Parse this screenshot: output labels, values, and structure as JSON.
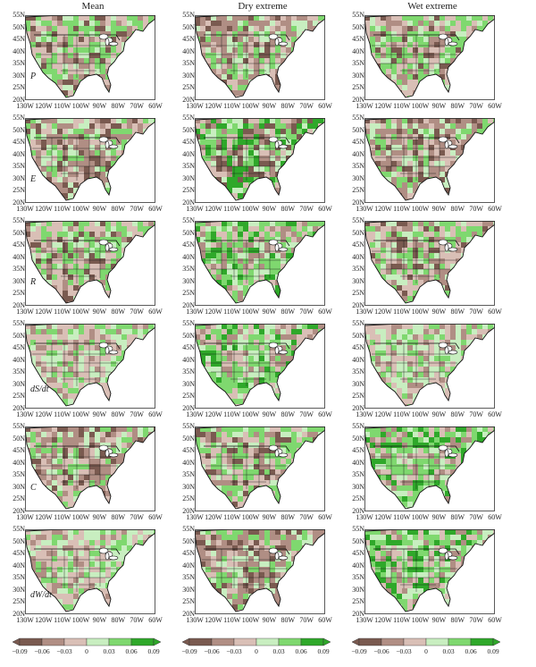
{
  "columns": [
    "Mean",
    "Dry extreme",
    "Wet extreme"
  ],
  "variables": [
    "P",
    "E",
    "R",
    "dS/dt",
    "C",
    "dW/dt"
  ],
  "lat_labels": [
    "55N",
    "50N",
    "45N",
    "40N",
    "35N",
    "30N",
    "25N",
    "20N"
  ],
  "lon_labels": [
    "130W",
    "120W",
    "110W",
    "100W",
    "90W",
    "80W",
    "70W",
    "60W"
  ],
  "colorbar_ticks": [
    "−0.09",
    "−0.06",
    "−0.03",
    "0",
    "0.03",
    "0.06",
    "0.09"
  ],
  "colors": {
    "strong_neg": "#7a5a50",
    "neg": "#b08e84",
    "weak_neg": "#d9bfb6",
    "weak_pos": "#c8eec0",
    "pos": "#7fd86f",
    "strong_pos": "#2fa82a",
    "ocean": "#ffffff",
    "border": "#111111"
  },
  "panel_tones": [
    [
      "mixed-neg",
      "neg",
      "mixed-neg"
    ],
    [
      "neg",
      "mixed",
      "neg"
    ],
    [
      "mixed-neg",
      "pos",
      "mixed-neg"
    ],
    [
      "weak",
      "pos",
      "weak"
    ],
    [
      "neg",
      "mixed-neg",
      "pos"
    ],
    [
      "weak",
      "neg",
      "pos"
    ]
  ]
}
